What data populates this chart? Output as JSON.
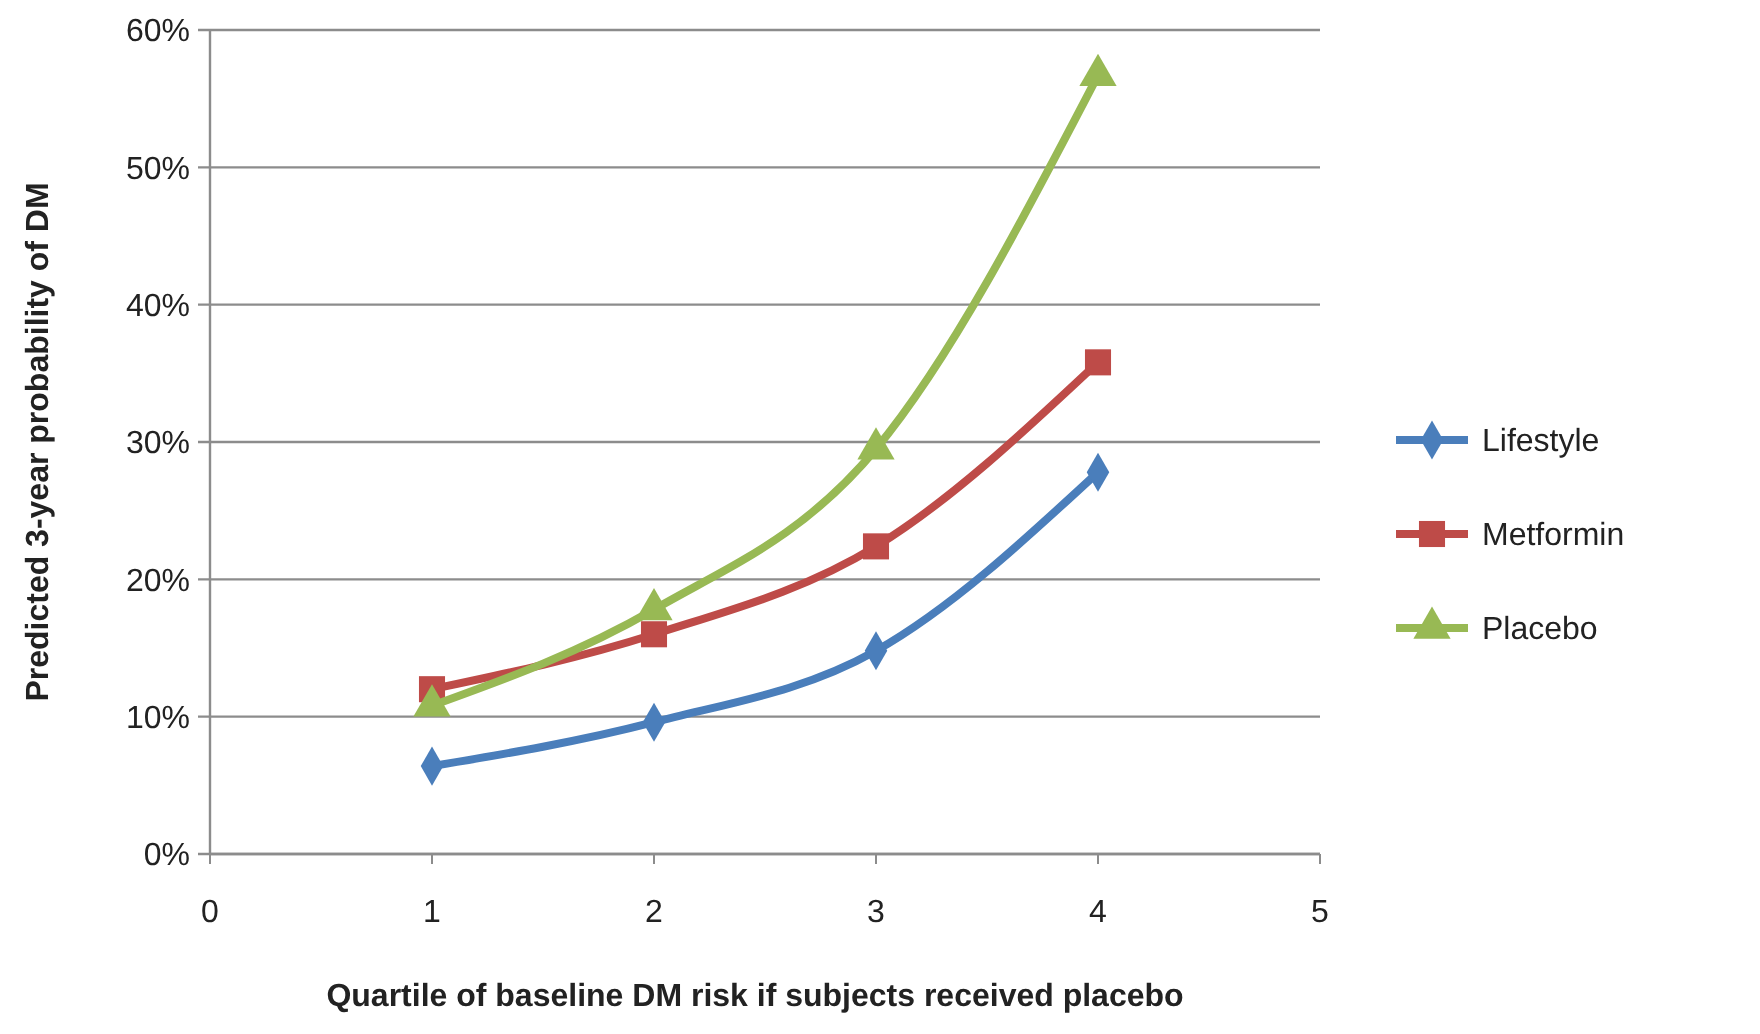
{
  "chart_data": {
    "type": "line",
    "xlabel": "Quartile of baseline DM risk if subjects received placebo",
    "ylabel": "Predicted 3-year probability of DM",
    "x": [
      1,
      2,
      3,
      4
    ],
    "xlim": [
      0,
      5
    ],
    "xticks": [
      0,
      1,
      2,
      3,
      4,
      5
    ],
    "ylim": [
      0,
      60
    ],
    "yticks": [
      {
        "value": 0,
        "label": "0%"
      },
      {
        "value": 10,
        "label": "10%"
      },
      {
        "value": 20,
        "label": "20%"
      },
      {
        "value": 30,
        "label": "30%"
      },
      {
        "value": 40,
        "label": "40%"
      },
      {
        "value": 50,
        "label": "50%"
      },
      {
        "value": 60,
        "label": "60%"
      }
    ],
    "grid": "y",
    "legend": "right",
    "series": [
      {
        "name": "Lifestyle",
        "color": "#4a7ebb",
        "marker": "diamond",
        "values": [
          6.4,
          9.6,
          14.8,
          27.8
        ]
      },
      {
        "name": "Metformin",
        "color": "#be4b48",
        "marker": "square",
        "values": [
          12.0,
          16.0,
          22.4,
          35.8
        ]
      },
      {
        "name": "Placebo",
        "color": "#98b954",
        "marker": "triangle",
        "values": [
          10.8,
          17.8,
          29.5,
          56.7
        ]
      }
    ]
  }
}
